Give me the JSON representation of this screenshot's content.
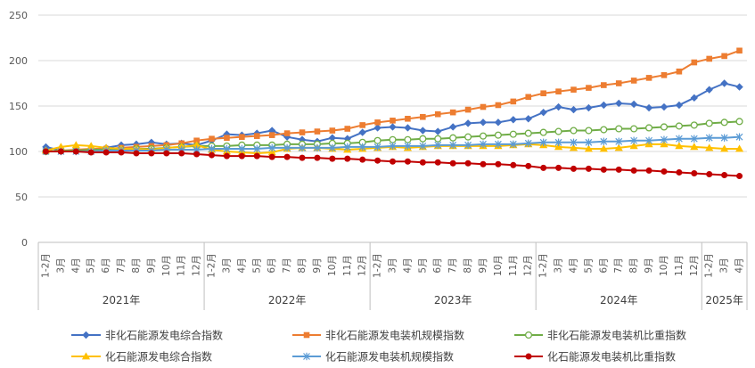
{
  "chart_data": {
    "type": "line",
    "categories": [
      "1-2月",
      "3月",
      "4月",
      "5月",
      "6月",
      "7月",
      "8月",
      "9月",
      "10月",
      "11月",
      "12月",
      "1-2月",
      "3月",
      "4月",
      "5月",
      "6月",
      "7月",
      "8月",
      "9月",
      "10月",
      "11月",
      "12月",
      "1-2月",
      "3月",
      "4月",
      "5月",
      "6月",
      "7月",
      "8月",
      "9月",
      "10月",
      "11月",
      "12月",
      "1-2月",
      "3月",
      "4月",
      "5月",
      "6月",
      "7月",
      "8月",
      "9月",
      "10月",
      "11月",
      "12月",
      "1-2月",
      "3月",
      "4月"
    ],
    "groups": [
      {
        "label": "2021年",
        "count": 11
      },
      {
        "label": "2022年",
        "count": 11
      },
      {
        "label": "2023年",
        "count": 11
      },
      {
        "label": "2024年",
        "count": 11
      },
      {
        "label": "2025年",
        "count": 3
      }
    ],
    "ylim": [
      0,
      250
    ],
    "yticks": [
      0,
      50,
      100,
      150,
      200,
      250
    ],
    "grid": true,
    "legend": "bottom",
    "series": [
      {
        "name": "非化石能源发电综合指数",
        "color": "#4472C4",
        "marker": "diamond",
        "values": [
          105,
          101,
          101,
          102,
          104,
          107,
          108,
          110,
          108,
          109,
          107,
          112,
          119,
          118,
          120,
          123,
          116,
          113,
          111,
          115,
          114,
          121,
          126,
          127,
          126,
          123,
          122,
          127,
          131,
          132,
          132,
          135,
          136,
          143,
          149,
          146,
          148,
          151,
          153,
          152,
          148,
          149,
          151,
          159,
          168,
          175,
          171
        ]
      },
      {
        "name": "非化石能源发电装机规模指数",
        "color": "#ED7D31",
        "marker": "square",
        "values": [
          100,
          101,
          102,
          103,
          103,
          104,
          105,
          106,
          107,
          109,
          112,
          114,
          115,
          116,
          117,
          118,
          120,
          121,
          122,
          123,
          125,
          129,
          132,
          134,
          136,
          138,
          141,
          143,
          146,
          149,
          151,
          155,
          160,
          164,
          166,
          168,
          170,
          173,
          175,
          178,
          181,
          184,
          188,
          198,
          202,
          205,
          211
        ]
      },
      {
        "name": "非化石能源发电装机比重指数",
        "color": "#70AD47",
        "marker": "circle-open",
        "values": [
          100,
          101,
          101,
          102,
          102,
          102,
          103,
          103,
          104,
          105,
          106,
          106,
          106,
          107,
          107,
          107,
          108,
          108,
          108,
          109,
          109,
          110,
          112,
          113,
          113,
          114,
          114,
          115,
          116,
          117,
          118,
          119,
          120,
          121,
          122,
          123,
          123,
          124,
          125,
          125,
          126,
          127,
          128,
          129,
          131,
          132,
          133
        ]
      },
      {
        "name": "化石能源发电综合指数",
        "color": "#FFC000",
        "marker": "triangle",
        "values": [
          101,
          105,
          107,
          106,
          104,
          103,
          103,
          102,
          104,
          105,
          107,
          102,
          100,
          99,
          98,
          99,
          103,
          104,
          104,
          103,
          102,
          103,
          104,
          105,
          104,
          105,
          106,
          106,
          106,
          106,
          106,
          107,
          108,
          107,
          105,
          104,
          103,
          103,
          104,
          106,
          108,
          108,
          106,
          105,
          104,
          103,
          103
        ]
      },
      {
        "name": "化石能源发电装机规模指数",
        "color": "#5B9BD5",
        "marker": "asterisk",
        "values": [
          100,
          100,
          100,
          100,
          101,
          101,
          101,
          101,
          102,
          102,
          102,
          103,
          103,
          103,
          103,
          104,
          104,
          104,
          104,
          104,
          105,
          105,
          105,
          106,
          106,
          106,
          107,
          107,
          107,
          108,
          108,
          108,
          109,
          110,
          110,
          110,
          110,
          111,
          111,
          112,
          112,
          113,
          114,
          114,
          115,
          115,
          116
        ]
      },
      {
        "name": "化石能源发电装机比重指数",
        "color": "#C00000",
        "marker": "circle",
        "values": [
          100,
          100,
          100,
          99,
          99,
          99,
          98,
          98,
          98,
          98,
          97,
          96,
          95,
          95,
          95,
          94,
          94,
          93,
          93,
          92,
          92,
          91,
          90,
          89,
          89,
          88,
          88,
          87,
          87,
          86,
          86,
          85,
          84,
          82,
          82,
          81,
          81,
          80,
          80,
          79,
          79,
          78,
          77,
          76,
          75,
          74,
          73
        ]
      }
    ]
  }
}
